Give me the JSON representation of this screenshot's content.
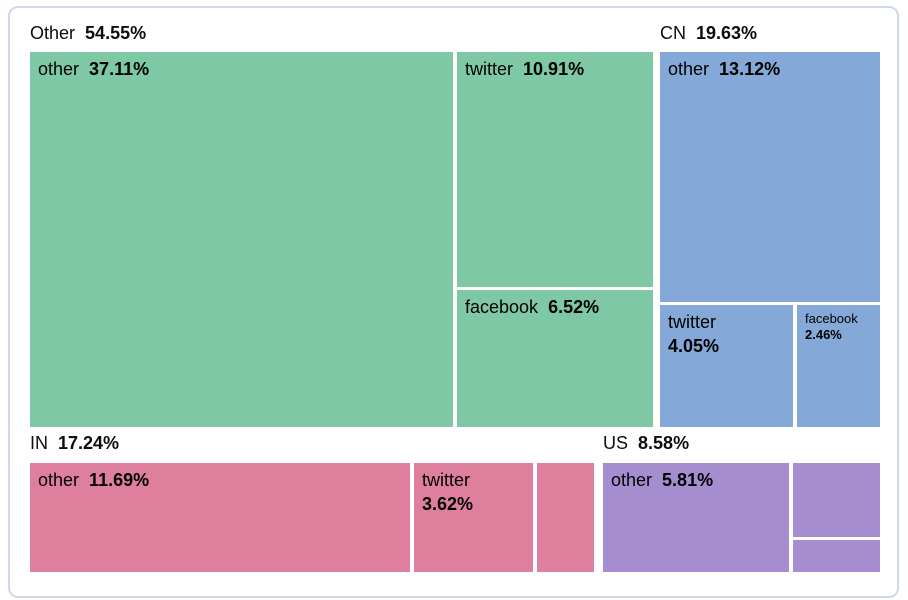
{
  "chart_data": {
    "type": "treemap",
    "unit": "%",
    "legend": "none",
    "groups": [
      {
        "label": "Other",
        "value": 54.55,
        "display": "54.55%",
        "color": "#7fc8a5",
        "children": [
          {
            "label": "other",
            "value": 37.11,
            "display": "37.11%"
          },
          {
            "label": "twitter",
            "value": 10.91,
            "display": "10.91%"
          },
          {
            "label": "facebook",
            "value": 6.52,
            "display": "6.52%"
          }
        ]
      },
      {
        "label": "CN",
        "value": 19.63,
        "display": "19.63%",
        "color": "#84a9d8",
        "children": [
          {
            "label": "other",
            "value": 13.12,
            "display": "13.12%"
          },
          {
            "label": "twitter",
            "value": 4.05,
            "display": "4.05%"
          },
          {
            "label": "facebook",
            "value": 2.46,
            "display": "2.46%"
          }
        ]
      },
      {
        "label": "IN",
        "value": 17.24,
        "display": "17.24%",
        "color": "#df7f9e",
        "children": [
          {
            "label": "other",
            "value": 11.69,
            "display": "11.69%"
          },
          {
            "label": "twitter",
            "value": 3.62,
            "display": "3.62%"
          },
          {
            "label": "",
            "value": null,
            "display": ""
          }
        ]
      },
      {
        "label": "US",
        "value": 8.58,
        "display": "8.58%",
        "color": "#a58dd0",
        "children": [
          {
            "label": "other",
            "value": 5.81,
            "display": "5.81%"
          },
          {
            "label": "",
            "value": null,
            "display": ""
          },
          {
            "label": "",
            "value": null,
            "display": ""
          }
        ]
      }
    ]
  }
}
